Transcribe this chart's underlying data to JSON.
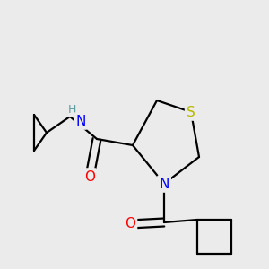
{
  "bg_color": "#ebebeb",
  "atom_colors": {
    "S": "#b8b800",
    "N": "#0000ff",
    "O": "#ff0000",
    "C": "#000000",
    "H": "#5f9ea0"
  },
  "bond_color": "#000000",
  "bond_width": 1.6
}
